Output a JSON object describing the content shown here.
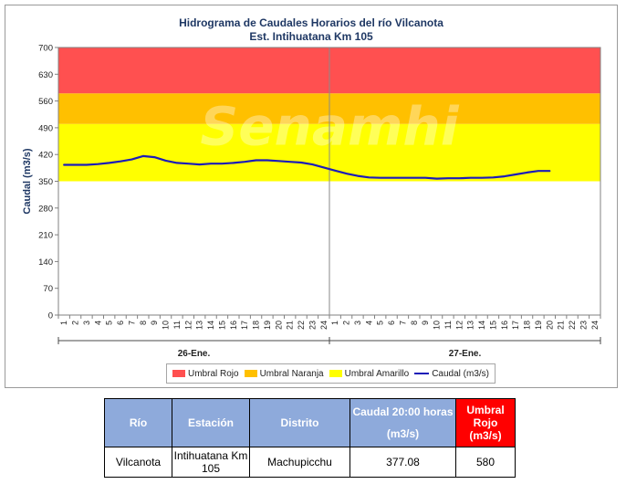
{
  "chart_data": {
    "type": "line",
    "title_lines": [
      "Hidrograma de Caudales Horarios del río Vilcanota",
      "Est. Intihuatana Km 105"
    ],
    "ylabel": "Caudal  (m3/s)",
    "ylim": [
      0,
      700
    ],
    "yticks": [
      0,
      70,
      140,
      210,
      280,
      350,
      420,
      490,
      560,
      630,
      700
    ],
    "xticks": [
      "1",
      "2",
      "3",
      "4",
      "5",
      "6",
      "7",
      "8",
      "9",
      "10",
      "11",
      "12",
      "13",
      "14",
      "15",
      "16",
      "17",
      "18",
      "19",
      "20",
      "21",
      "22",
      "23",
      "24",
      "1",
      "2",
      "3",
      "4",
      "5",
      "6",
      "7",
      "8",
      "9",
      "10",
      "11",
      "12",
      "13",
      "14",
      "15",
      "16",
      "17",
      "18",
      "19",
      "20",
      "21",
      "22",
      "23",
      "24"
    ],
    "day_labels": [
      "26-Ene.",
      "27-Ene."
    ],
    "watermark": "Senamhi",
    "thresholds": [
      {
        "name": "Umbral Amarillo",
        "from": 350,
        "to": 500,
        "color": "#ffff00"
      },
      {
        "name": "Umbral Naranja",
        "from": 500,
        "to": 580,
        "color": "#ffc000"
      },
      {
        "name": "Umbral Rojo",
        "from": 580,
        "to": 700,
        "color": "#ff5050"
      }
    ],
    "series": [
      {
        "name": "Caudal (m3/s)",
        "color": "#1c1cb8",
        "values": [
          393,
          393,
          393,
          395,
          398,
          402,
          407,
          416,
          413,
          404,
          398,
          396,
          394,
          396,
          396,
          398,
          401,
          405,
          405,
          403,
          401,
          399,
          394,
          386,
          378,
          370,
          364,
          360,
          359,
          359,
          359,
          359,
          359,
          357,
          358,
          358,
          359,
          359,
          360,
          363,
          368,
          373,
          377,
          377
        ]
      }
    ],
    "legend": [
      "Umbral Rojo",
      "Umbral Naranja",
      "Umbral Amarillo",
      "Caudal (m3/s)"
    ],
    "legend_position": "bottom"
  },
  "table": {
    "headers": {
      "rio": "Río",
      "estacion": "Estación",
      "distrito": "Distrito",
      "caudal": "Caudal 20:00 horas",
      "caudal_unit": "(m3/s)",
      "umbral": "Umbral Rojo",
      "umbral_unit": "(m3/s)"
    },
    "row": {
      "rio": "Vilcanota",
      "estacion": "Intihuatana Km 105",
      "distrito": "Machupicchu",
      "caudal": "377.08",
      "umbral": "580"
    }
  }
}
